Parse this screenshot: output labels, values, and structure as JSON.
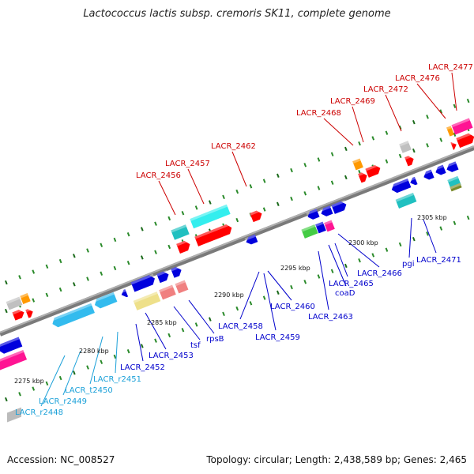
{
  "title": "Lactococcus lactis subsp. cremoris SK11, complete genome",
  "footer": {
    "accession": "Accession: NC_008527",
    "topology": "Topology: circular; Length: 2,438,589 bp; Genes: 2,465"
  },
  "colors": {
    "backbone": "#808080",
    "red_label": "#cc0000",
    "blue_label": "#0000cc",
    "cyan_label": "#1aa0d8",
    "minor_tick": "#1a7a1a"
  },
  "scale_labels": [
    "2275 kbp",
    "2280 kbp",
    "2285 kbp",
    "2290 kbp",
    "2295 kbp",
    "2300 kbp",
    "2305 kbp"
  ],
  "top_labels": [
    "LACR_2456",
    "LACR_2457",
    "LACR_2462",
    "LACR_2468",
    "LACR_2469",
    "LACR_2472",
    "LACR_2476",
    "LACR_2477"
  ],
  "bottom_labels": [
    "LACR_2452",
    "LACR_2453",
    "tsf",
    "rpsB",
    "LACR_2458",
    "LACR_2459",
    "LACR_2460",
    "LACR_2463",
    "coaD",
    "LACR_2465",
    "LACR_2466",
    "pgi",
    "LACR_2471"
  ],
  "rna_labels": [
    "LACR_r2448",
    "LACR_r2449",
    "LACR_t2450",
    "LACR_r2451"
  ]
}
